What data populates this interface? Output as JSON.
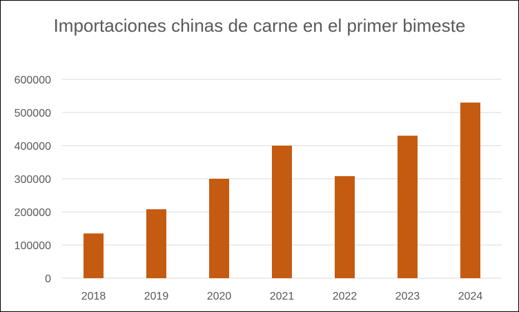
{
  "chart_data": {
    "type": "bar",
    "title": "Importaciones chinas de carne en el primer bimeste",
    "categories": [
      "2018",
      "2019",
      "2020",
      "2021",
      "2022",
      "2023",
      "2024"
    ],
    "series": [
      {
        "values": [
          135000,
          208000,
          300000,
          400000,
          308000,
          430000,
          530000
        ]
      }
    ],
    "ylim": [
      0,
      600000
    ],
    "yticks": [
      0,
      100000,
      200000,
      300000,
      400000,
      500000,
      600000
    ],
    "grid": true,
    "legend": "none",
    "colors": {
      "bar": "#c55a11",
      "grid": "#d9d9d9",
      "text": "#595959"
    }
  }
}
